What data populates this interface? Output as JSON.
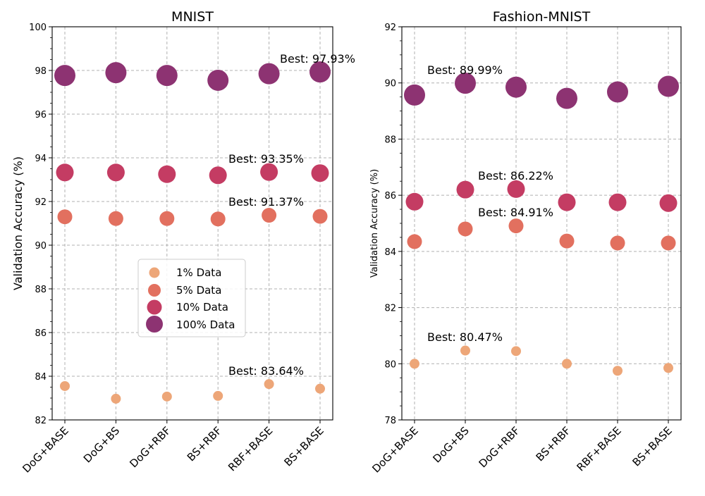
{
  "legend": [
    {
      "label": "1% Data",
      "color": "#eda678"
    },
    {
      "label": "5% Data",
      "color": "#e2705f"
    },
    {
      "label": "10% Data",
      "color": "#c43c63"
    },
    {
      "label": "100% Data",
      "color": "#8d3372"
    }
  ],
  "chart_data": [
    {
      "type": "scatter",
      "title": "MNIST",
      "xlabel": "",
      "ylabel": "Validation Accuracy (%)",
      "categories": [
        "DoG+BASE",
        "DoG+BS",
        "DoG+RBF",
        "BS+RBF",
        "RBF+BASE",
        "BS+BASE"
      ],
      "ylim": [
        82,
        100
      ],
      "yticks": [
        82,
        84,
        86,
        88,
        90,
        92,
        94,
        96,
        98,
        100
      ],
      "grid": true,
      "legend_position": "center",
      "series": [
        {
          "name": "1% Data",
          "values": [
            83.55,
            82.97,
            83.07,
            83.1,
            83.64,
            83.43
          ]
        },
        {
          "name": "5% Data",
          "values": [
            91.3,
            91.22,
            91.22,
            91.2,
            91.37,
            91.32
          ]
        },
        {
          "name": "10% Data",
          "values": [
            93.33,
            93.33,
            93.25,
            93.2,
            93.35,
            93.3
          ]
        },
        {
          "name": "100% Data",
          "values": [
            97.77,
            97.9,
            97.77,
            97.55,
            97.85,
            97.93
          ]
        }
      ],
      "annotations": [
        "Best: 97.93%",
        "Best: 93.35%",
        "Best: 91.37%",
        "Best: 83.64%"
      ]
    },
    {
      "type": "scatter",
      "title": "Fashion-MNIST",
      "xlabel": "",
      "ylabel": "Validation Accuracy (%)",
      "categories": [
        "DoG+BASE",
        "DoG+BS",
        "DoG+RBF",
        "BS+RBF",
        "RBF+BASE",
        "BS+BASE"
      ],
      "ylim": [
        78,
        92
      ],
      "yticks": [
        78,
        80,
        82,
        84,
        86,
        88,
        90,
        92
      ],
      "grid": true,
      "series": [
        {
          "name": "1% Data",
          "values": [
            80.0,
            80.47,
            80.45,
            80.0,
            79.75,
            79.85
          ]
        },
        {
          "name": "5% Data",
          "values": [
            84.35,
            84.8,
            84.91,
            84.37,
            84.3,
            84.3
          ]
        },
        {
          "name": "10% Data",
          "values": [
            85.77,
            86.2,
            86.22,
            85.75,
            85.75,
            85.72
          ]
        },
        {
          "name": "100% Data",
          "values": [
            89.57,
            89.99,
            89.85,
            89.45,
            89.68,
            89.88
          ]
        }
      ],
      "annotations": [
        "Best: 89.99%",
        "Best: 86.22%",
        "Best: 84.91%",
        "Best: 80.47%"
      ]
    }
  ]
}
